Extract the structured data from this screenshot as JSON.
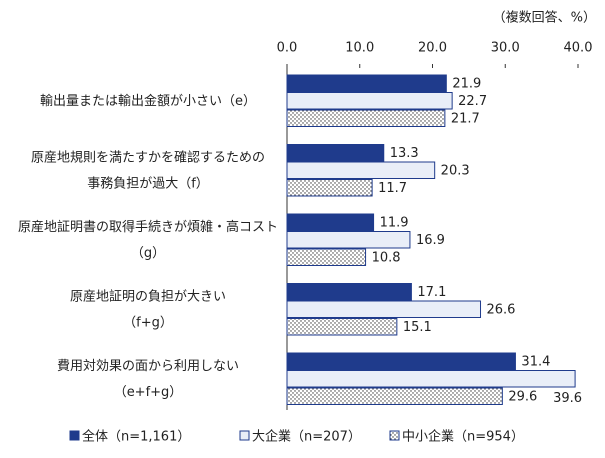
{
  "chart_data": {
    "type": "hbar",
    "unit_label": "（複数回答、%）",
    "categories": [
      [
        "輸出量または輸出金額が小さい（e）"
      ],
      [
        "原産地規則を満たすかを確認するための",
        "事務負担が過大（f）"
      ],
      [
        "原産地証明書の取得手続きが煩雑・高コスト",
        "（g）"
      ],
      [
        "原産地証明の負担が大きい",
        "（f+g）"
      ],
      [
        "費用対効果の面から利用しない",
        "（e+f+g）"
      ]
    ],
    "series": [
      {
        "name": "全体（n=1,161）",
        "color": "#1f3b8c",
        "values": [
          21.9,
          13.3,
          11.9,
          17.1,
          31.4
        ]
      },
      {
        "name": "大企業（n=207）",
        "color": "#e9eef8",
        "values": [
          22.7,
          20.3,
          16.9,
          26.6,
          39.6
        ]
      },
      {
        "name": "中小企業（n=954）",
        "color": "dots",
        "values": [
          21.7,
          11.7,
          10.8,
          15.1,
          29.6
        ]
      }
    ],
    "xlim": [
      0,
      40
    ],
    "xticks": [
      {
        "value": 0,
        "label": "0.0"
      },
      {
        "value": 10,
        "label": "10.0"
      },
      {
        "value": 20,
        "label": "20.0"
      },
      {
        "value": 30,
        "label": "30.0"
      },
      {
        "value": 40,
        "label": "40.0"
      }
    ]
  }
}
